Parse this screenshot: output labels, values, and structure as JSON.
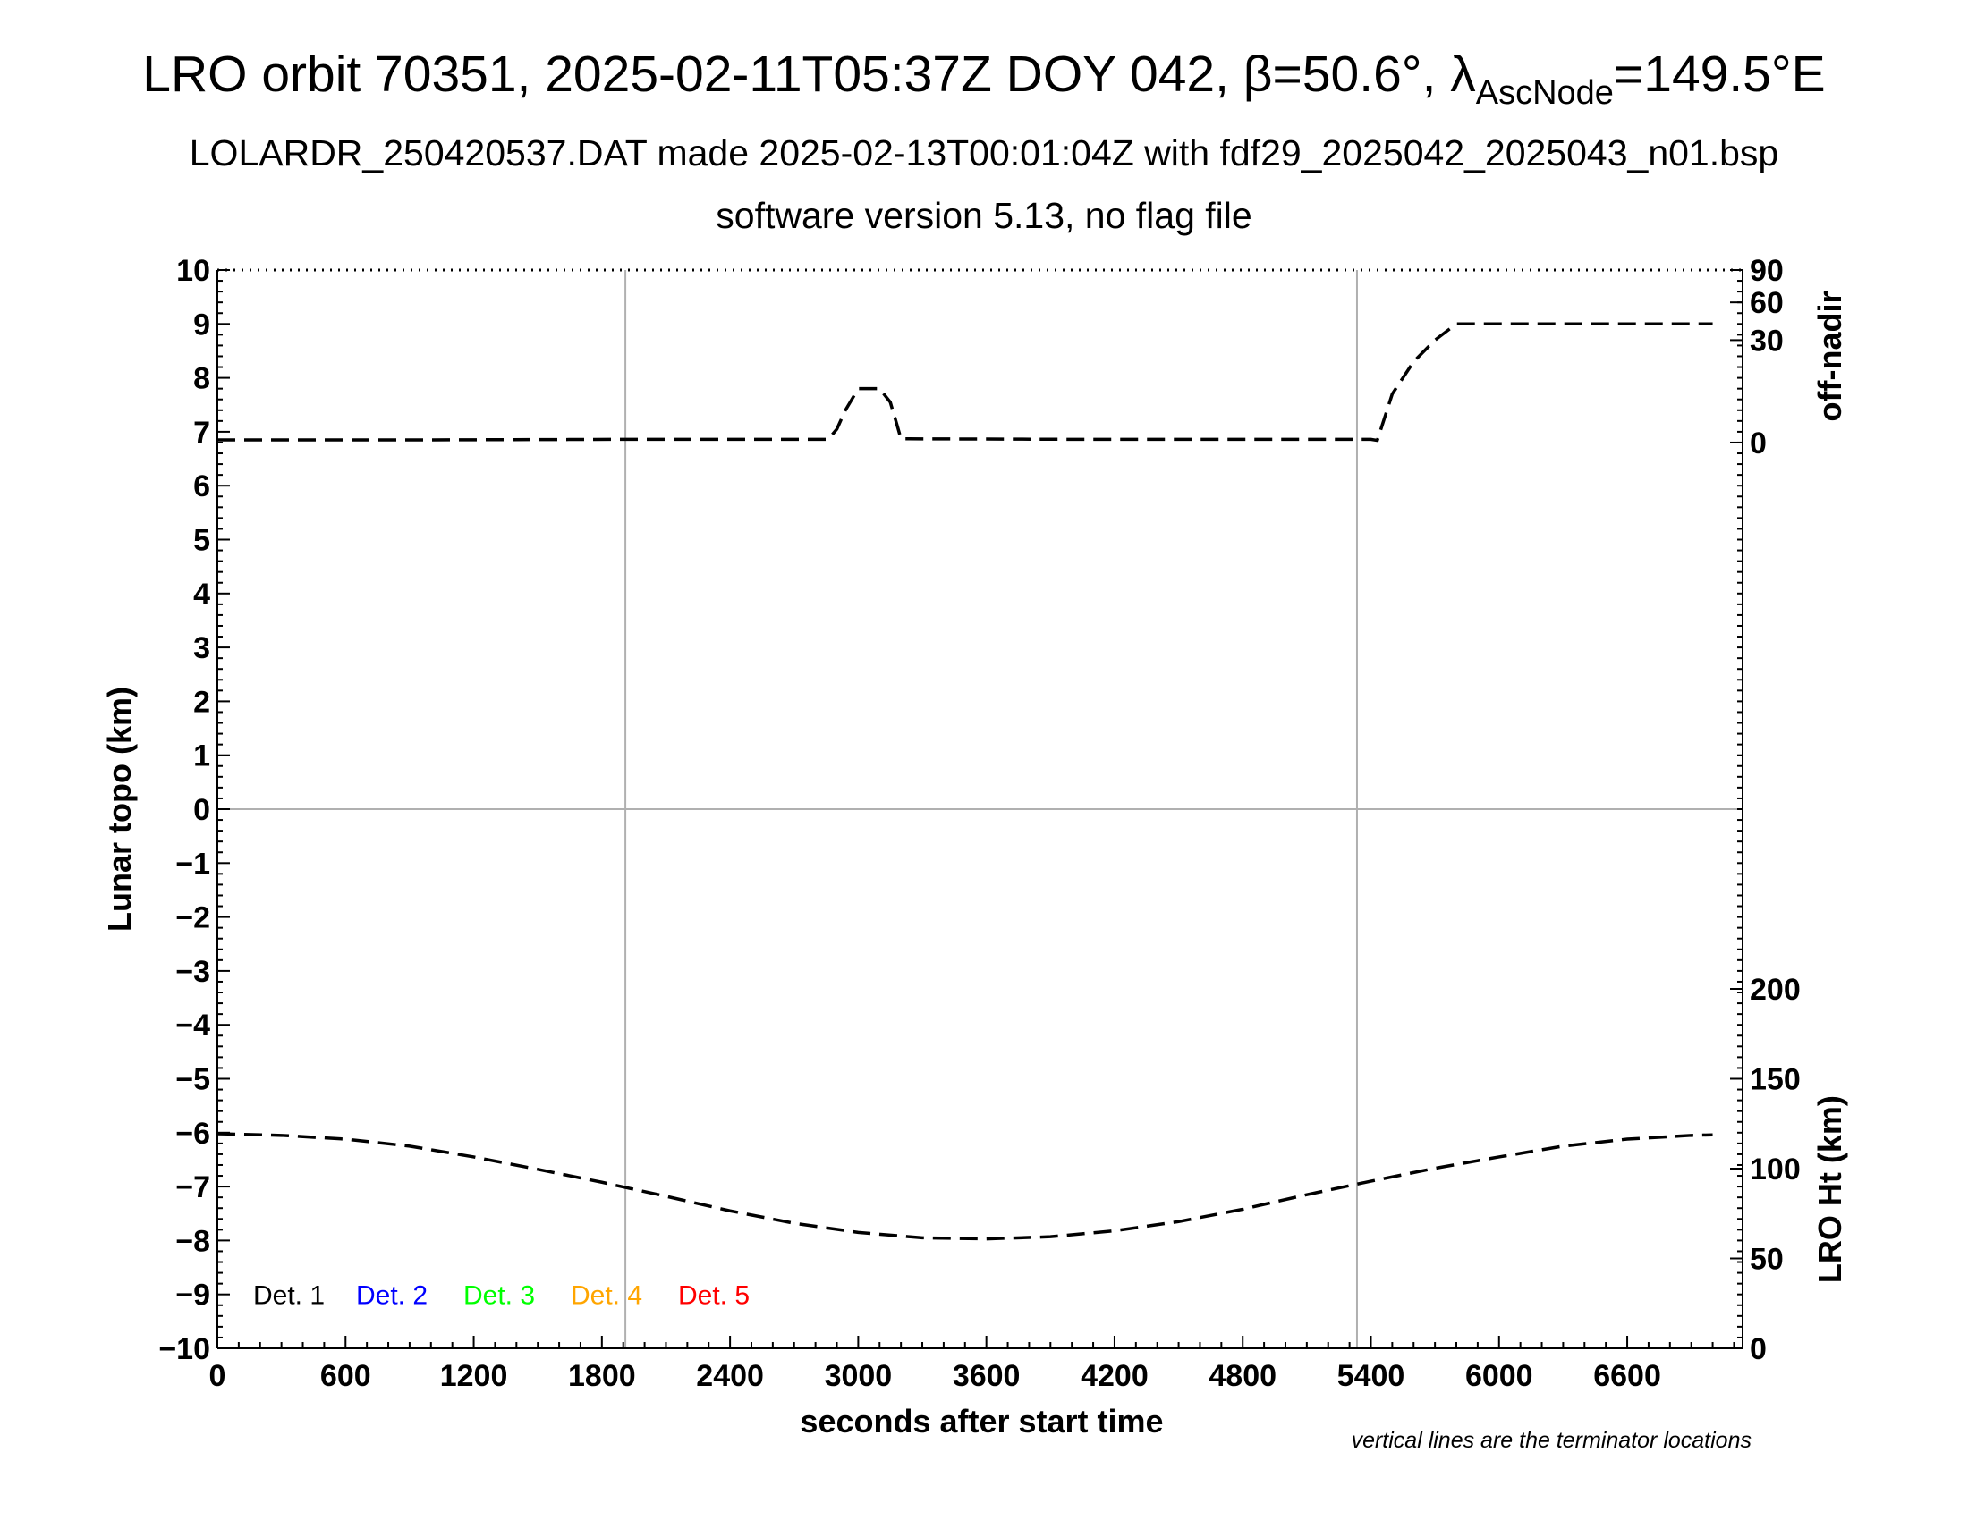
{
  "header": {
    "title_main": "LRO orbit 70351, 2025-02-11T05:37Z DOY 042, β=50.6°, λ",
    "title_sub": "AscNode",
    "title_tail": "=149.5°E",
    "subtitle": "LOLARDR_250420537.DAT made 2025-02-13T00:01:04Z with fdf29_2025042_2025043_n01.bsp",
    "subtitle2": "software version 5.13, no flag file"
  },
  "chart_data": {
    "type": "line",
    "xlabel": "seconds after start time",
    "ylabel": "Lunar topo (km)",
    "right_upper_label": "off-nadir",
    "right_lower_label": "LRO Ht (km)",
    "xlim": [
      0,
      7140
    ],
    "ylim": [
      -10,
      10
    ],
    "x_ticks": [
      "0",
      "600",
      "1200",
      "1800",
      "2400",
      "3000",
      "3600",
      "4200",
      "4800",
      "5400",
      "6000",
      "6600"
    ],
    "y_ticks": [
      "−10",
      "−9",
      "−8",
      "−7",
      "−6",
      "−5",
      "−4",
      "−3",
      "−2",
      "−1",
      "0",
      "1",
      "2",
      "3",
      "4",
      "5",
      "6",
      "7",
      "8",
      "9",
      "10"
    ],
    "offnadir_ticks": [
      "0",
      "30",
      "60",
      "90"
    ],
    "ht_ticks": [
      "0",
      "50",
      "100",
      "150",
      "200"
    ],
    "terminator_x": [
      1910,
      5335
    ],
    "zero_line_y": 0,
    "legend": [
      {
        "label": "Det. 1",
        "color": "#000000"
      },
      {
        "label": "Det. 2",
        "color": "#0000ff"
      },
      {
        "label": "Det. 3",
        "color": "#00ff00"
      },
      {
        "label": "Det. 4",
        "color": "#ffa500"
      },
      {
        "label": "Det. 5",
        "color": "#ff0000"
      }
    ],
    "series": [
      {
        "x": [
          0,
          1000,
          2000,
          2860,
          2900,
          2940,
          3000,
          3050,
          3100,
          3150,
          3180,
          3200,
          4000,
          5000,
          5330,
          5400,
          5430,
          5500,
          5600,
          5700,
          5800,
          6000,
          6600,
          7000
        ],
        "y": [
          6.85,
          6.85,
          6.86,
          6.86,
          7.05,
          7.4,
          7.8,
          7.8,
          7.8,
          7.55,
          7.15,
          6.87,
          6.86,
          6.86,
          6.86,
          6.86,
          6.84,
          7.7,
          8.3,
          8.7,
          9.0,
          9.0,
          9.0,
          9.0
        ]
      },
      {
        "x": [
          0,
          300,
          600,
          900,
          1200,
          1500,
          1800,
          2100,
          2400,
          2700,
          3000,
          3300,
          3600,
          3900,
          4200,
          4500,
          4800,
          5100,
          5400,
          5700,
          6000,
          6300,
          6600,
          6900,
          7000
        ],
        "y": [
          -6.02,
          -6.05,
          -6.12,
          -6.25,
          -6.45,
          -6.68,
          -6.92,
          -7.18,
          -7.45,
          -7.68,
          -7.85,
          -7.95,
          -7.97,
          -7.93,
          -7.82,
          -7.65,
          -7.42,
          -7.15,
          -6.9,
          -6.66,
          -6.45,
          -6.25,
          -6.12,
          -6.05,
          -6.04
        ]
      }
    ]
  },
  "footer": {
    "note": "vertical lines are the terminator locations"
  }
}
